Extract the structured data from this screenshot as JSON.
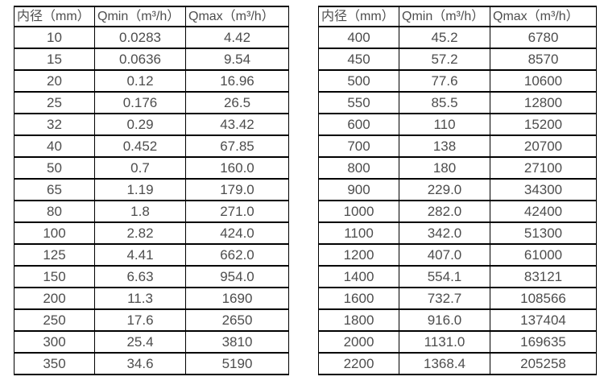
{
  "headers": {
    "diameter": "内径（mm）",
    "qmin": "Qmin（m³/h）",
    "qmax": "Qmax（m³/h）"
  },
  "colors": {
    "border": "#000000",
    "text": "#4d4d4d",
    "background": "#ffffff"
  },
  "left_table": {
    "rows": [
      [
        "10",
        "0.0283",
        "4.42"
      ],
      [
        "15",
        "0.0636",
        "9.54"
      ],
      [
        "20",
        "0.12",
        "16.96"
      ],
      [
        "25",
        "0.176",
        "26.5"
      ],
      [
        "32",
        "0.29",
        "43.42"
      ],
      [
        "40",
        "0.452",
        "67.85"
      ],
      [
        "50",
        "0.7",
        "160.0"
      ],
      [
        "65",
        "1.19",
        "179.0"
      ],
      [
        "80",
        "1.8",
        "271.0"
      ],
      [
        "100",
        "2.82",
        "424.0"
      ],
      [
        "125",
        "4.41",
        "662.0"
      ],
      [
        "150",
        "6.63",
        "954.0"
      ],
      [
        "200",
        "11.3",
        "1690"
      ],
      [
        "250",
        "17.6",
        "2650"
      ],
      [
        "300",
        "25.4",
        "3810"
      ],
      [
        "350",
        "34.6",
        "5190"
      ]
    ]
  },
  "right_table": {
    "rows": [
      [
        "400",
        "45.2",
        "6780"
      ],
      [
        "450",
        "57.2",
        "8570"
      ],
      [
        "500",
        "77.6",
        "10600"
      ],
      [
        "550",
        "85.5",
        "12800"
      ],
      [
        "600",
        "110",
        "15200"
      ],
      [
        "700",
        "138",
        "20700"
      ],
      [
        "800",
        "180",
        "27100"
      ],
      [
        "900",
        "229.0",
        "34300"
      ],
      [
        "1000",
        "282.0",
        "42400"
      ],
      [
        "1100",
        "342.0",
        "51300"
      ],
      [
        "1200",
        "407.0",
        "61000"
      ],
      [
        "1400",
        "554.1",
        "83121"
      ],
      [
        "1600",
        "732.7",
        "108566"
      ],
      [
        "1800",
        "916.0",
        "137404"
      ],
      [
        "2000",
        "1131.0",
        "169635"
      ],
      [
        "2200",
        "1368.4",
        "205258"
      ]
    ]
  }
}
